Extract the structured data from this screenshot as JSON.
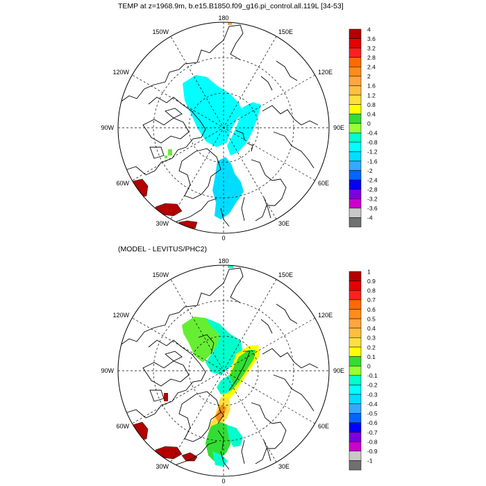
{
  "top_panel": {
    "title": "TEMP at z=1968.9m, b.e15.B1850.f09_g16.pi_control.all.119L [34-53]",
    "lon_labels": [
      "180",
      "150E",
      "120E",
      "90E",
      "60E",
      "30E",
      "0",
      "30W",
      "60W",
      "90W",
      "120W",
      "150W"
    ],
    "colorbar_labels": [
      "4",
      "3.6",
      "3.2",
      "2.8",
      "2.4",
      "2",
      "1.6",
      "1.2",
      "0.8",
      "0.4",
      "0",
      "-0.4",
      "-0.8",
      "-1.2",
      "-1.6",
      "-2",
      "-2.4",
      "-2.8",
      "-3.2",
      "-3.6",
      "-4"
    ]
  },
  "bottom_panel": {
    "title": "(MODEL - LEVITUS/PHC2)",
    "lon_labels": [
      "180",
      "150E",
      "120E",
      "90E",
      "60E",
      "30E",
      "0",
      "30W",
      "60W",
      "90W",
      "120W",
      "150W"
    ],
    "colorbar_labels": [
      "1",
      "0.9",
      "0.8",
      "0.7",
      "0.6",
      "0.5",
      "0.4",
      "0.3",
      "0.2",
      "0.1",
      "0",
      "-0.1",
      "-0.2",
      "-0.3",
      "-0.4",
      "-0.5",
      "-0.6",
      "-0.7",
      "-0.8",
      "-0.9",
      "-1"
    ]
  },
  "colorbar_colors": [
    "#b30000",
    "#e60000",
    "#ff2020",
    "#ff6a00",
    "#ff8c1a",
    "#ffa640",
    "#ffbf3f",
    "#ffe040",
    "#ffff00",
    "#33dd33",
    "#99ff33",
    "#00ffcc",
    "#00ffff",
    "#00ddff",
    "#33aaff",
    "#0066ff",
    "#0000ff",
    "#7a00e0",
    "#cc00cc",
    "#c8c8c8",
    "#707070"
  ]
}
